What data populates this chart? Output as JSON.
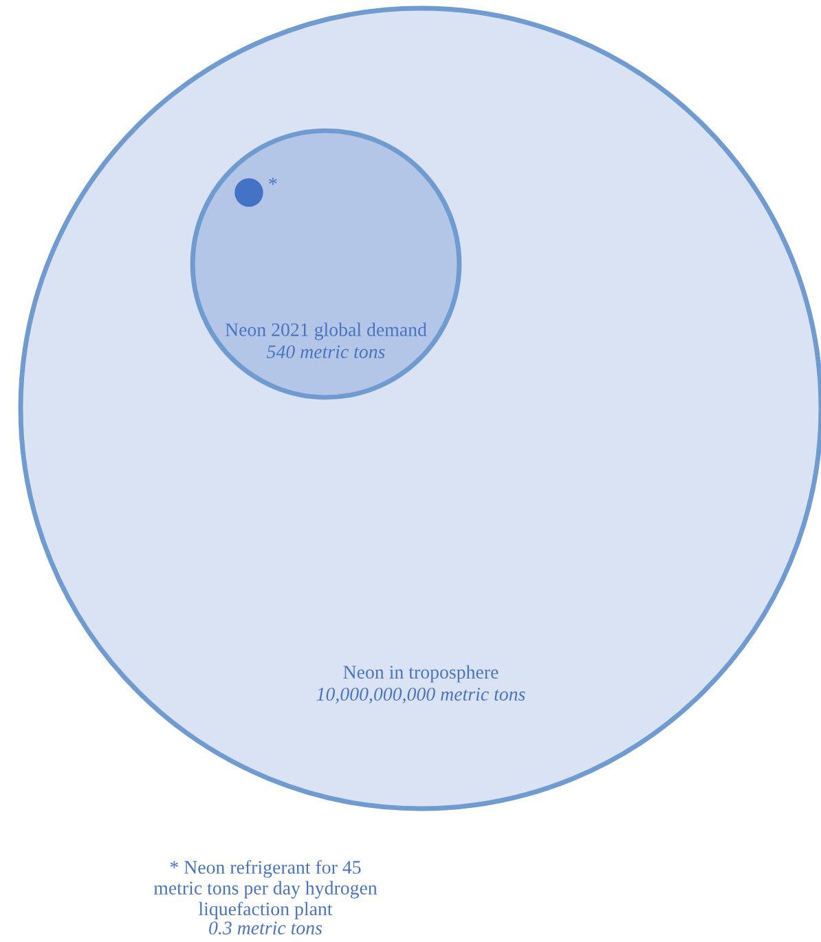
{
  "chart_data": {
    "type": "other",
    "categories": [
      "Neon in troposphere",
      "Neon 2021 global demand",
      "* Neon refrigerant for 45\nmetric tons per day hydrogen\nliquefaction plant"
    ],
    "values": [
      10000000000,
      540,
      0.3
    ],
    "value_labels": [
      "10,000,000,000 metric tons",
      "540 metric tons",
      "0.3 metric tons"
    ],
    "colors": [
      "#dae3f3",
      "#b4c6e7",
      "#4472c4"
    ],
    "annotations": [
      "*"
    ]
  }
}
